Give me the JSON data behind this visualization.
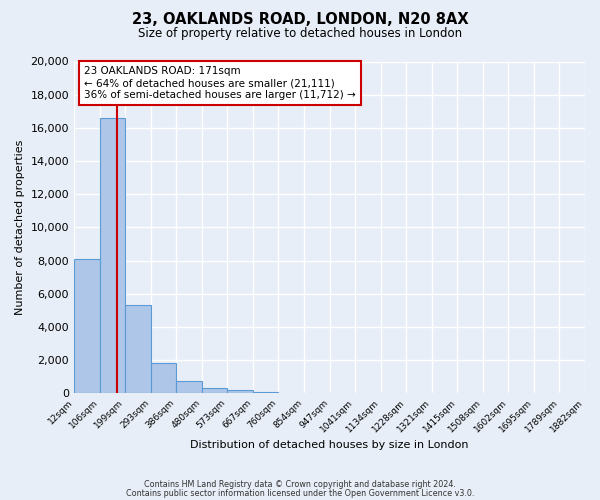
{
  "title": "23, OAKLANDS ROAD, LONDON, N20 8AX",
  "subtitle": "Size of property relative to detached houses in London",
  "xlabel": "Distribution of detached houses by size in London",
  "ylabel": "Number of detached properties",
  "bin_labels": [
    "12sqm",
    "106sqm",
    "199sqm",
    "293sqm",
    "386sqm",
    "480sqm",
    "573sqm",
    "667sqm",
    "760sqm",
    "854sqm",
    "947sqm",
    "1041sqm",
    "1134sqm",
    "1228sqm",
    "1321sqm",
    "1415sqm",
    "1508sqm",
    "1602sqm",
    "1695sqm",
    "1789sqm",
    "1882sqm"
  ],
  "bar_values": [
    8100,
    16600,
    5300,
    1820,
    750,
    300,
    180,
    100,
    0,
    0,
    0,
    0,
    0,
    0,
    0,
    0,
    0,
    0,
    0,
    0
  ],
  "bar_color": "#aec6e8",
  "bar_edge_color": "#5b9bd5",
  "ylim": [
    0,
    20000
  ],
  "yticks": [
    0,
    2000,
    4000,
    6000,
    8000,
    10000,
    12000,
    14000,
    16000,
    18000,
    20000
  ],
  "annotation_title": "23 OAKLANDS ROAD: 171sqm",
  "annotation_line1": "← 64% of detached houses are smaller (21,111)",
  "annotation_line2": "36% of semi-detached houses are larger (11,712) →",
  "footer_line1": "Contains HM Land Registry data © Crown copyright and database right 2024.",
  "footer_line2": "Contains public sector information licensed under the Open Government Licence v3.0.",
  "bg_color": "#e8eef7",
  "plot_bg_color": "#e8eef7",
  "grid_color": "#ffffff",
  "annotation_box_color": "#ffffff",
  "annotation_box_edge": "#cc0000",
  "red_line_x": 1.699
}
